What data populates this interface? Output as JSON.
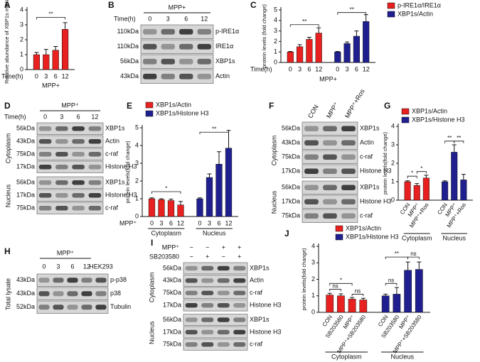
{
  "chart_data": [
    {
      "type": "bar",
      "panel": "A",
      "ylabel": "Relative abundance of XBP1s mRNA",
      "x_title": "Time(h)",
      "group_label": "MPP+",
      "categories": [
        "0",
        "3",
        "6",
        "12"
      ],
      "series": [
        {
          "color": "#e8201f",
          "values": [
            1.0,
            1.0,
            1.3,
            2.7
          ],
          "errors": [
            0.15,
            0.35,
            0.25,
            0.45
          ]
        }
      ],
      "ylim": [
        0,
        4
      ],
      "yticks": [
        0,
        1,
        2,
        3,
        4
      ],
      "annotations": [
        "**"
      ]
    },
    {
      "type": "bar",
      "panel": "C",
      "ylabel": "protein levels (fold change)",
      "x_title": "Time(h)",
      "group_label": "MPP+",
      "categories": [
        "0",
        "3",
        "6",
        "12"
      ],
      "series": [
        {
          "name": "p-IRE1α/IRE1α",
          "color": "#e8201f",
          "values": [
            1.0,
            1.5,
            2.2,
            2.8
          ],
          "errors": [
            0.05,
            0.2,
            0.2,
            0.5
          ]
        },
        {
          "name": "XBP1s/Actin",
          "color": "#1f1f8f",
          "values": [
            1.0,
            1.8,
            2.5,
            3.9
          ],
          "errors": [
            0.05,
            0.15,
            0.5,
            0.65
          ]
        }
      ],
      "ylim": [
        0,
        5
      ],
      "yticks": [
        0,
        1,
        2,
        3,
        4,
        5
      ],
      "annotations": [
        "**",
        "**"
      ]
    },
    {
      "type": "bar",
      "panel": "E",
      "ylabel": "protein levels(fold change)",
      "x_title": "MPP⁺",
      "groups": [
        "Cytoplasm",
        "Nucleus"
      ],
      "categories": [
        "0",
        "3",
        "6",
        "12"
      ],
      "series": [
        {
          "name": "XBP1s/Actin",
          "color": "#e8201f",
          "values": [
            1.0,
            0.95,
            0.9,
            0.65
          ],
          "errors": [
            0.05,
            0.05,
            0.08,
            0.2
          ]
        },
        {
          "name": "XBP1s/Histone H3",
          "color": "#1f1f8f",
          "values": [
            1.0,
            2.2,
            2.95,
            3.85
          ],
          "errors": [
            0.05,
            0.2,
            0.7,
            1.0
          ]
        }
      ],
      "ylim": [
        0,
        5
      ],
      "yticks": [
        0,
        1,
        2,
        3,
        4,
        5
      ],
      "annotations": [
        "*",
        "**"
      ]
    },
    {
      "type": "bar",
      "panel": "G",
      "ylabel": "protein levels(fold change)",
      "groups": [
        "Cytoplasm",
        "Nucleus"
      ],
      "categories": [
        "CON",
        "MPP⁺",
        "MPP⁺+Ros"
      ],
      "series": [
        {
          "name": "XBP1s/Actin",
          "color": "#e8201f",
          "values": [
            1.0,
            0.8,
            1.2
          ],
          "errors": [
            0.05,
            0.1,
            0.15
          ]
        },
        {
          "name": "XBP1s/Histone H3",
          "color": "#1f1f8f",
          "values": [
            1.0,
            2.6,
            1.1
          ],
          "errors": [
            0.05,
            0.4,
            0.3
          ]
        }
      ],
      "ylim": [
        0,
        4
      ],
      "yticks": [
        0,
        1,
        2,
        3,
        4
      ],
      "annotations": [
        "*",
        "*",
        "**",
        "**"
      ]
    },
    {
      "type": "bar",
      "panel": "J",
      "ylabel": "protein levels(fold change)",
      "groups": [
        "Cytoplasm",
        "Nucleus"
      ],
      "categories": [
        "CON",
        "SB203580",
        "MPP⁺",
        "MPP⁺+SB203580"
      ],
      "series": [
        {
          "name": "XBP1s/Actin",
          "color": "#e8201f",
          "values": [
            1.05,
            1.0,
            0.8,
            0.75
          ],
          "errors": [
            0.1,
            0.12,
            0.1,
            0.1
          ]
        },
        {
          "name": "XBP1s/Histone H3",
          "color": "#1f1f8f",
          "values": [
            1.0,
            1.1,
            2.55,
            2.6
          ],
          "errors": [
            0.1,
            0.4,
            0.5,
            0.45
          ]
        }
      ],
      "ylim": [
        0,
        4
      ],
      "yticks": [
        0,
        1,
        2,
        3,
        4
      ],
      "annotations": [
        "ns",
        "*",
        "ns",
        "ns",
        "**",
        "ns"
      ]
    }
  ],
  "blots": {
    "B": {
      "panel": "B",
      "title": "MPP+",
      "lane_title": "Time(h)",
      "lanes": [
        "0",
        "3",
        "6",
        "12"
      ],
      "sections": [
        {
          "rows": [
            {
              "kda": "110kDa",
              "protein": "p-IRE1α"
            },
            {
              "kda": "110kDa",
              "protein": "IRE1α"
            },
            {
              "kda": "56kDa",
              "protein": "XBP1s"
            },
            {
              "kda": "43kDa",
              "protein": "Actin"
            }
          ]
        }
      ]
    },
    "D": {
      "panel": "D",
      "title": "MPP⁺",
      "lane_title": "Time(h)",
      "lanes": [
        "0",
        "3",
        "6",
        "12"
      ],
      "sections": [
        {
          "name": "Cytoplasm",
          "rows": [
            {
              "kda": "56kDa",
              "protein": "XBP1s"
            },
            {
              "kda": "43kDa",
              "protein": "Actin"
            },
            {
              "kda": "75kDa",
              "protein": "c-raf"
            },
            {
              "kda": "17kDa",
              "protein": "Histone H3"
            }
          ]
        },
        {
          "name": "Nucleus",
          "rows": [
            {
              "kda": "56kDa",
              "protein": "XBP1s"
            },
            {
              "kda": "17kDa",
              "protein": "Histone H3"
            },
            {
              "kda": "75kDa",
              "protein": "c-raf"
            }
          ]
        }
      ]
    },
    "F": {
      "panel": "F",
      "lanes": [
        "CON",
        "MPP⁺",
        "MPP⁺+Ros"
      ],
      "sections": [
        {
          "name": "Cytoplasm",
          "rows": [
            {
              "kda": "56kDa",
              "protein": "XBP1s"
            },
            {
              "kda": "43kDa",
              "protein": "Actin"
            },
            {
              "kda": "75kDa",
              "protein": "c-raf"
            },
            {
              "kda": "17kDa",
              "protein": "Histone H3"
            }
          ]
        },
        {
          "name": "Nucleus",
          "rows": [
            {
              "kda": "56kDa",
              "protein": "XBP1s"
            },
            {
              "kda": "17kDa",
              "protein": "Histone H3"
            },
            {
              "kda": "75kDa",
              "protein": "c-raf"
            }
          ]
        }
      ]
    },
    "H": {
      "panel": "H",
      "title": "MPP⁺",
      "lanes": [
        "0",
        "3",
        "6",
        "12",
        "HEK293"
      ],
      "sections": [
        {
          "name": "Total lysate",
          "rows": [
            {
              "kda": "43kDa",
              "protein": "p-p38"
            },
            {
              "kda": "43kDa",
              "protein": "p38"
            },
            {
              "kda": "52kDa",
              "protein": "Tubulin"
            }
          ]
        }
      ]
    },
    "I": {
      "panel": "I",
      "conditions": [
        {
          "name": "MPP⁺",
          "signs": [
            "−",
            "−",
            "+",
            "+"
          ]
        },
        {
          "name": "SB203580",
          "signs": [
            "−",
            "+",
            "−",
            "+"
          ]
        }
      ],
      "lanes": [
        "",
        "",
        "",
        ""
      ],
      "sections": [
        {
          "name": "Cytoplasm",
          "rows": [
            {
              "kda": "56kDa",
              "protein": "XBP1s"
            },
            {
              "kda": "43kDa",
              "protein": "Actin"
            },
            {
              "kda": "75kDa",
              "protein": "c-raf"
            },
            {
              "kda": "17kDa",
              "protein": "Histone H3"
            }
          ]
        },
        {
          "name": "Nucleus",
          "rows": [
            {
              "kda": "56kDa",
              "protein": "XBP1s"
            },
            {
              "kda": "17kDa",
              "protein": "Histone H3"
            },
            {
              "kda": "75kDa",
              "protein": "c-raf"
            }
          ]
        }
      ]
    }
  }
}
